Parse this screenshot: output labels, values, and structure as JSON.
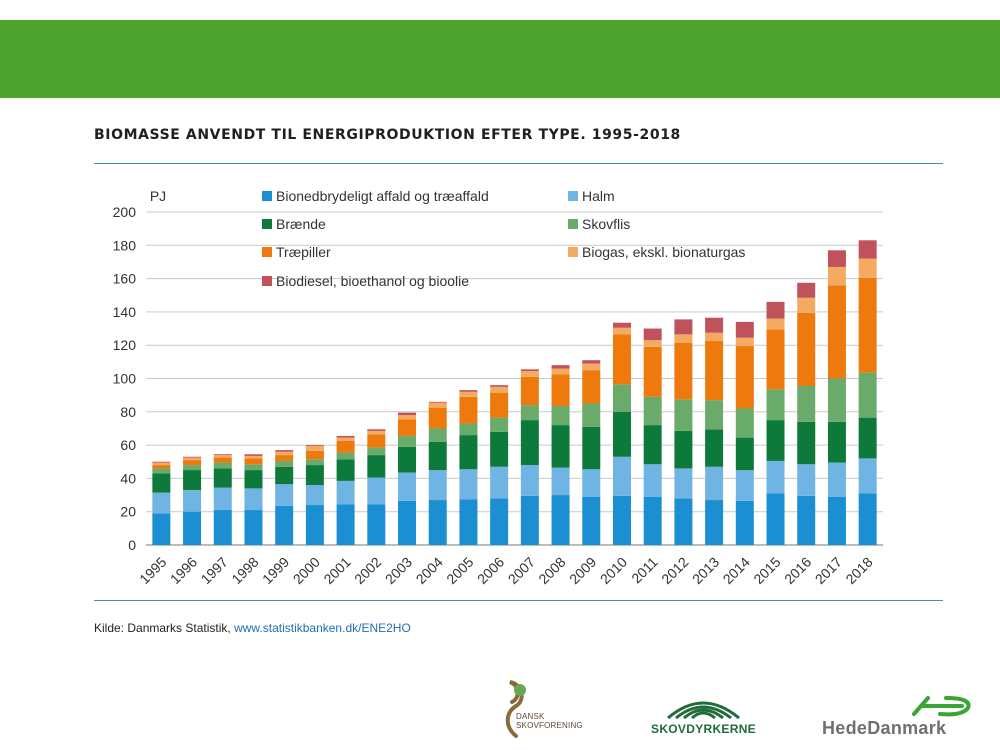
{
  "header": {
    "band_color": "#4ea42e"
  },
  "chart_data": {
    "type": "stacked-bar",
    "title": "BIOMASSE ANVENDT TIL ENERGIPRODUKTION EFTER TYPE. 1995-2018",
    "ylabel": "PJ",
    "ylim": [
      0,
      200
    ],
    "yticks": [
      0,
      20,
      40,
      60,
      80,
      100,
      120,
      140,
      160,
      180,
      200
    ],
    "categories": [
      "1995",
      "1996",
      "1997",
      "1998",
      "1999",
      "2000",
      "2001",
      "2002",
      "2003",
      "2004",
      "2005",
      "2006",
      "2007",
      "2008",
      "2009",
      "2010",
      "2011",
      "2012",
      "2013",
      "2014",
      "2015",
      "2016",
      "2017",
      "2018"
    ],
    "legend_position": "top",
    "series": [
      {
        "name": "Bionedbrydeligt affald og træaffald",
        "color": "#1b8fd2",
        "values": [
          19,
          20,
          21,
          21,
          23.5,
          24,
          24.5,
          24.5,
          26.5,
          27,
          27.5,
          28,
          29.5,
          30,
          29,
          29.5,
          29,
          28,
          27,
          26.5,
          31,
          29.5,
          29,
          31
        ]
      },
      {
        "name": "Halm",
        "color": "#6fb4e3",
        "values": [
          12.5,
          13,
          13.5,
          13,
          13,
          12,
          14,
          16,
          17,
          18,
          18,
          19,
          18.5,
          16.5,
          16.5,
          23.5,
          19.5,
          18,
          20,
          18.5,
          19.5,
          19,
          20.5,
          21
        ]
      },
      {
        "name": "Brænde",
        "color": "#0d7a3b",
        "values": [
          11.5,
          12,
          11.5,
          11,
          10.5,
          12,
          13,
          13.5,
          15.5,
          17,
          20.5,
          21,
          27,
          25.5,
          25.5,
          27,
          23.5,
          22.5,
          22.5,
          19.5,
          24.5,
          25.5,
          24.5,
          24.5
        ]
      },
      {
        "name": "Skovflis",
        "color": "#6aaa6a",
        "values": [
          3,
          3,
          3.5,
          3.5,
          3.5,
          3.5,
          4,
          4.5,
          6.5,
          8,
          7,
          8.5,
          9,
          11.5,
          14,
          16.5,
          17,
          19,
          17.5,
          17.5,
          18.5,
          21.5,
          26,
          27
        ]
      },
      {
        "name": "Træpiller",
        "color": "#ee7a0e",
        "values": [
          2,
          3,
          3,
          3.5,
          3.5,
          5,
          7,
          8,
          10,
          12.5,
          16,
          15,
          17,
          19,
          20,
          30,
          30,
          34,
          35.5,
          37.5,
          36,
          44,
          56,
          57
        ]
      },
      {
        "name": "Biogas, ekskl. bionaturgas",
        "color": "#f5aa62",
        "values": [
          1.5,
          1.5,
          1.5,
          1.5,
          2,
          3,
          2,
          2,
          2.5,
          3,
          3,
          3.5,
          3.5,
          3.5,
          4,
          4,
          4,
          5,
          5,
          5,
          6.5,
          9,
          11,
          11.5
        ]
      },
      {
        "name": "Biodiesel, bioethanol og bioolie",
        "color": "#c0525c",
        "values": [
          0.5,
          0.5,
          0.5,
          1,
          1,
          0.5,
          1,
          1,
          1.5,
          0.5,
          1,
          1,
          1,
          2,
          2,
          3,
          7,
          9,
          9,
          9.5,
          10,
          9,
          10,
          11
        ]
      }
    ]
  },
  "source": {
    "label": "Kilde: Danmarks Statistik,",
    "link": "www.statistikbanken.dk/ENE2HO"
  },
  "logos": {
    "dsf_line1": "DANSK",
    "dsf_line2": "SKOVFORENING",
    "skov": "SKOVDYRKERNE",
    "hede": "HedeDanmark"
  }
}
